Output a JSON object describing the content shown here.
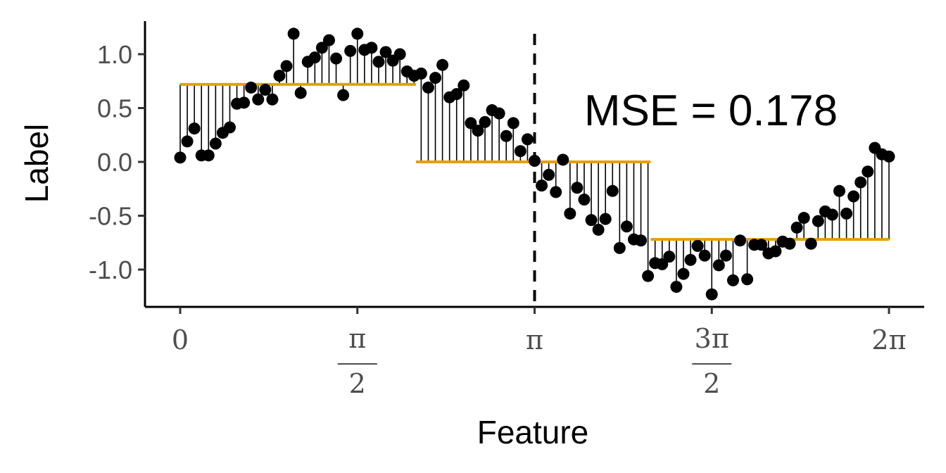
{
  "chart_data": {
    "type": "scatter",
    "xlabel": "Feature",
    "ylabel": "Label",
    "xlim": [
      -0.32,
      6.55
    ],
    "ylim": [
      -1.35,
      1.3
    ],
    "x_ticks": [
      {
        "value": 0,
        "num": "0",
        "den": ""
      },
      {
        "value": 1.5708,
        "num": "π",
        "den": "2"
      },
      {
        "value": 3.1416,
        "num": "π",
        "den": ""
      },
      {
        "value": 4.7124,
        "num": "3π",
        "den": "2"
      },
      {
        "value": 6.2832,
        "num": "2π",
        "den": ""
      }
    ],
    "y_ticks": [
      {
        "value": 1.0,
        "label": "1.0"
      },
      {
        "value": 0.5,
        "label": "0.5"
      },
      {
        "value": 0.0,
        "label": "0.0"
      },
      {
        "value": -0.5,
        "label": "-0.5"
      },
      {
        "value": -1.0,
        "label": "-1.0"
      }
    ],
    "grid": false,
    "annotation": "MSE = 0.178",
    "split_line_x": 3.1416,
    "step_segments": [
      {
        "x_start": 0,
        "x_end": 2.09,
        "y": 0.72
      },
      {
        "x_start": 2.09,
        "x_end": 4.17,
        "y": 0.0
      },
      {
        "x_start": 4.17,
        "x_end": 6.2832,
        "y": -0.72
      }
    ],
    "points_y": [
      0.04,
      0.19,
      0.31,
      0.06,
      0.06,
      0.17,
      0.27,
      0.32,
      0.54,
      0.55,
      0.69,
      0.58,
      0.67,
      0.58,
      0.8,
      0.89,
      1.19,
      0.64,
      0.93,
      0.97,
      1.06,
      1.13,
      0.96,
      0.62,
      1.03,
      1.19,
      1.04,
      1.06,
      0.93,
      1.02,
      0.94,
      1.0,
      0.84,
      0.8,
      0.82,
      0.69,
      0.78,
      0.9,
      0.6,
      0.63,
      0.71,
      0.36,
      0.29,
      0.37,
      0.48,
      0.45,
      0.24,
      0.36,
      0.1,
      0.21,
      0.01,
      -0.22,
      -0.12,
      -0.28,
      0.02,
      -0.48,
      -0.24,
      -0.35,
      -0.54,
      -0.63,
      -0.53,
      -0.27,
      -0.8,
      -0.6,
      -0.72,
      -0.73,
      -1.06,
      -0.94,
      -0.95,
      -0.88,
      -1.16,
      -1.04,
      -0.91,
      -0.78,
      -0.87,
      -1.23,
      -0.96,
      -0.87,
      -1.1,
      -0.73,
      -1.09,
      -0.77,
      -0.77,
      -0.85,
      -0.83,
      -0.74,
      -0.76,
      -0.61,
      -0.52,
      -0.76,
      -0.55,
      -0.46,
      -0.49,
      -0.27,
      -0.48,
      -0.32,
      -0.19,
      -0.09,
      0.13,
      0.07,
      0.05
    ],
    "colors": {
      "points": "#000000",
      "residuals": "#000000",
      "fit_line": "#E69F00",
      "axis": "#000000",
      "tick_labels": "#4d4d4d"
    }
  }
}
